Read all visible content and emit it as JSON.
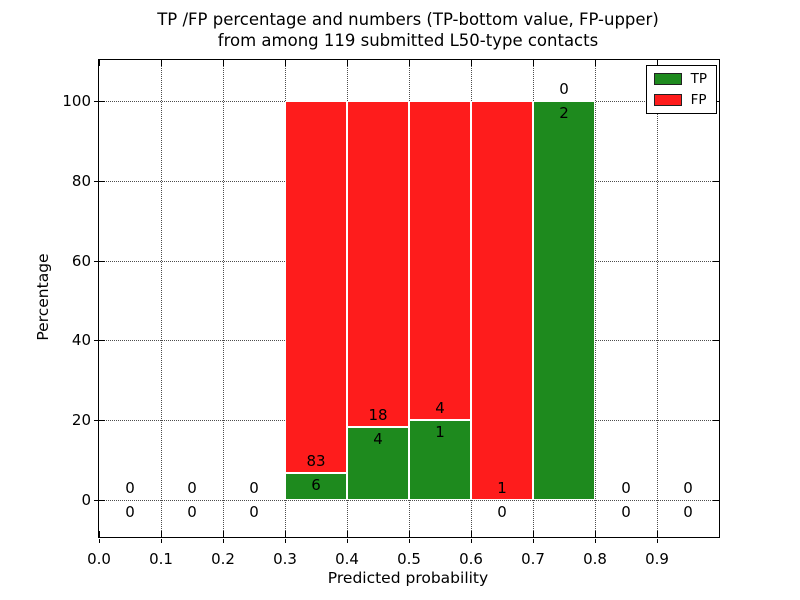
{
  "chart_data": {
    "type": "bar",
    "stacked": true,
    "title_line1": "TP /FP percentage and numbers (TP-bottom value, FP-upper)",
    "title_line2": "from among 119 submitted L50-type contacts",
    "total_submitted_contacts": 119,
    "xlabel": "Predicted probability",
    "ylabel": "Percentage",
    "xlim": [
      0.0,
      1.0
    ],
    "ylim": [
      -9.3,
      110.3
    ],
    "xticks": [
      "0.0",
      "0.1",
      "0.2",
      "0.3",
      "0.4",
      "0.5",
      "0.6",
      "0.7",
      "0.8",
      "0.9"
    ],
    "yticks": [
      0,
      20,
      40,
      60,
      80,
      100
    ],
    "grid": "dotted both axes",
    "legend": {
      "position": "upper right",
      "entries": [
        {
          "label": "TP",
          "color": "#1e8a1e"
        },
        {
          "label": "FP",
          "color": "#fe1c1c"
        }
      ]
    },
    "bins": [
      {
        "range": [
          0.0,
          0.1
        ],
        "tp": 0,
        "fp": 0,
        "tp_pct": 0,
        "fp_pct": 0
      },
      {
        "range": [
          0.1,
          0.2
        ],
        "tp": 0,
        "fp": 0,
        "tp_pct": 0,
        "fp_pct": 0
      },
      {
        "range": [
          0.2,
          0.3
        ],
        "tp": 0,
        "fp": 0,
        "tp_pct": 0,
        "fp_pct": 0
      },
      {
        "range": [
          0.3,
          0.4
        ],
        "tp": 6,
        "fp": 83,
        "tp_pct": 6.74,
        "fp_pct": 93.26
      },
      {
        "range": [
          0.4,
          0.5
        ],
        "tp": 4,
        "fp": 18,
        "tp_pct": 18.18,
        "fp_pct": 81.82
      },
      {
        "range": [
          0.5,
          0.6
        ],
        "tp": 1,
        "fp": 4,
        "tp_pct": 20.0,
        "fp_pct": 80.0
      },
      {
        "range": [
          0.6,
          0.7
        ],
        "tp": 0,
        "fp": 1,
        "tp_pct": 0,
        "fp_pct": 100.0
      },
      {
        "range": [
          0.7,
          0.8
        ],
        "tp": 2,
        "fp": 0,
        "tp_pct": 100.0,
        "fp_pct": 0
      },
      {
        "range": [
          0.8,
          0.9
        ],
        "tp": 0,
        "fp": 0,
        "tp_pct": 0,
        "fp_pct": 0
      },
      {
        "range": [
          0.9,
          1.0
        ],
        "tp": 0,
        "fp": 0,
        "tp_pct": 0,
        "fp_pct": 0
      }
    ],
    "colors": {
      "tp_green": "#1e8a1e",
      "fp_red": "#fe1c1c",
      "bar_edge": "#ffffff",
      "grid": "#4d4d4d",
      "text": "#000000"
    }
  }
}
